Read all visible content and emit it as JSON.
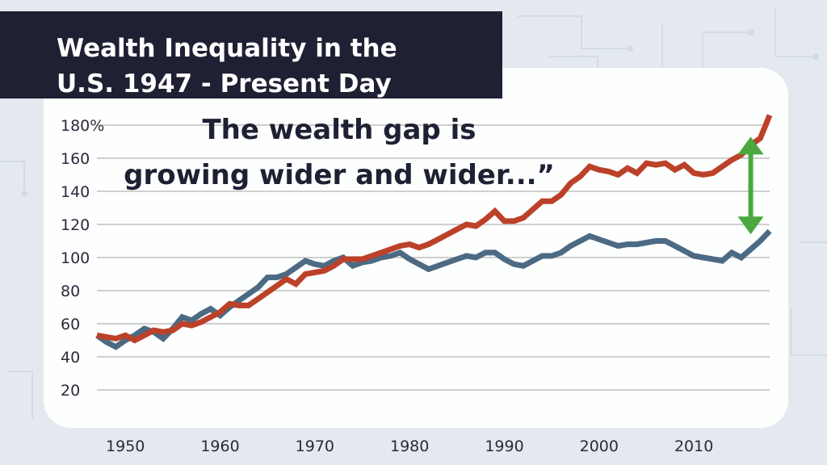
{
  "title": {
    "line1": "Wealth Inequality in the",
    "line2": "U.S. 1947 - Present Day"
  },
  "annotation": {
    "line1": "The wealth gap is",
    "line2": "growing wider and wider...”"
  },
  "colors": {
    "banner": "#1f2033",
    "series_red": "#bc4129",
    "series_blue": "#4c6a84",
    "arrow": "#4aa83e",
    "grid": "#cfcfcf"
  },
  "chart_data": {
    "type": "line",
    "title": "Wealth Inequality in the U.S. 1947 - Present Day",
    "xlabel": "",
    "ylabel": "",
    "xlim": [
      1947,
      2018
    ],
    "ylim": [
      20,
      180
    ],
    "x_ticks": [
      "1950",
      "1960",
      "1970",
      "1980",
      "1990",
      "2000",
      "2010"
    ],
    "y_ticks": [
      "180%",
      "160",
      "140",
      "120",
      "100",
      "80",
      "60",
      "40",
      "20"
    ],
    "grid": true,
    "series": [
      {
        "color": "#bc4129",
        "x": [
          1947,
          1948,
          1949,
          1950,
          1951,
          1952,
          1953,
          1954,
          1955,
          1956,
          1957,
          1958,
          1959,
          1960,
          1961,
          1962,
          1963,
          1964,
          1965,
          1966,
          1967,
          1968,
          1969,
          1970,
          1971,
          1972,
          1973,
          1974,
          1975,
          1976,
          1977,
          1978,
          1979,
          1980,
          1981,
          1982,
          1983,
          1984,
          1985,
          1986,
          1987,
          1988,
          1989,
          1990,
          1991,
          1992,
          1993,
          1994,
          1995,
          1996,
          1997,
          1998,
          1999,
          2000,
          2001,
          2002,
          2003,
          2004,
          2005,
          2006,
          2007,
          2008,
          2009,
          2010,
          2011,
          2012,
          2013,
          2014,
          2015,
          2016,
          2017,
          2018
        ],
        "values": [
          53,
          52,
          51,
          53,
          50,
          53,
          56,
          55,
          56,
          60,
          59,
          61,
          64,
          67,
          72,
          71,
          71,
          75,
          79,
          83,
          87,
          84,
          90,
          91,
          92,
          95,
          99,
          99,
          99,
          101,
          103,
          105,
          107,
          108,
          106,
          108,
          111,
          114,
          117,
          120,
          119,
          123,
          128,
          122,
          122,
          124,
          129,
          134,
          134,
          138,
          145,
          149,
          155,
          153,
          152,
          150,
          154,
          151,
          157,
          156,
          157,
          153,
          156,
          151,
          150,
          151,
          155,
          159,
          162,
          168,
          172,
          186
        ]
      },
      {
        "color": "#4c6a84",
        "x": [
          1947,
          1948,
          1949,
          1950,
          1951,
          1952,
          1953,
          1954,
          1955,
          1956,
          1957,
          1958,
          1959,
          1960,
          1961,
          1962,
          1963,
          1964,
          1965,
          1966,
          1967,
          1968,
          1969,
          1970,
          1971,
          1972,
          1973,
          1974,
          1975,
          1976,
          1977,
          1978,
          1979,
          1980,
          1981,
          1982,
          1983,
          1984,
          1985,
          1986,
          1987,
          1988,
          1989,
          1990,
          1991,
          1992,
          1993,
          1994,
          1995,
          1996,
          1997,
          1998,
          1999,
          2000,
          2001,
          2002,
          2003,
          2004,
          2005,
          2006,
          2007,
          2008,
          2009,
          2010,
          2011,
          2012,
          2013,
          2014,
          2015,
          2016,
          2017,
          2018
        ],
        "values": [
          53,
          49,
          46,
          50,
          53,
          57,
          55,
          51,
          57,
          64,
          62,
          66,
          69,
          65,
          70,
          74,
          78,
          82,
          88,
          88,
          90,
          94,
          98,
          96,
          95,
          98,
          100,
          95,
          97,
          98,
          100,
          101,
          103,
          99,
          96,
          93,
          95,
          97,
          99,
          101,
          100,
          103,
          103,
          99,
          96,
          95,
          98,
          101,
          101,
          103,
          107,
          110,
          113,
          111,
          109,
          107,
          108,
          108,
          109,
          110,
          110,
          107,
          104,
          101,
          100,
          99,
          98,
          103,
          100,
          105,
          110,
          116
        ]
      }
    ],
    "annotation_arrow": {
      "x": 2016,
      "y_from": 114,
      "y_to": 173
    }
  }
}
